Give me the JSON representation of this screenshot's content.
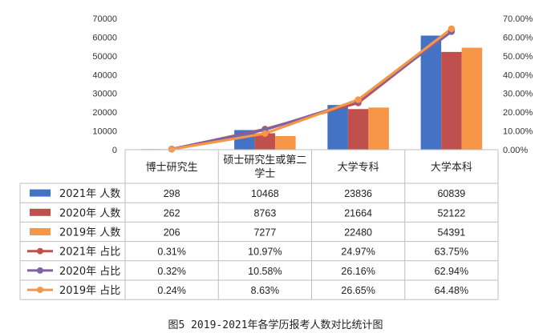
{
  "caption": "图5  2019-2021年各学历报考人数对比统计图",
  "chart_data": {
    "type": "bar",
    "title": "",
    "categories": [
      "博士研究生",
      "硕士研究生或第二学士",
      "大学专科",
      "大学本科"
    ],
    "category_lines": [
      [
        "博士研究生"
      ],
      [
        "硕士研究生或第二",
        "学士"
      ],
      [
        "大学专科"
      ],
      [
        "大学本科"
      ]
    ],
    "y_left": {
      "lim": [
        0,
        70000
      ],
      "ticks": [
        "0",
        "10000",
        "20000",
        "30000",
        "40000",
        "50000",
        "60000",
        "70000"
      ]
    },
    "y_right": {
      "lim": [
        0,
        70
      ],
      "ticks": [
        "0.00%",
        "10.00%",
        "20.00%",
        "30.00%",
        "40.00%",
        "50.00%",
        "60.00%",
        "70.00%"
      ]
    },
    "grid": false,
    "legend": "table-below",
    "series": [
      {
        "name": "2021年 人数",
        "kind": "bar",
        "axis": "left",
        "color": "#4472c4",
        "values": [
          298,
          10468,
          23836,
          60839
        ],
        "labels": [
          "298",
          "10468",
          "23836",
          "60839"
        ]
      },
      {
        "name": "2020年 人数",
        "kind": "bar",
        "axis": "left",
        "color": "#c0504d",
        "values": [
          262,
          8763,
          21664,
          52122
        ],
        "labels": [
          "262",
          "8763",
          "21664",
          "52122"
        ]
      },
      {
        "name": "2019年 人数",
        "kind": "bar",
        "axis": "left",
        "color": "#f79646",
        "values": [
          206,
          7277,
          22480,
          54391
        ],
        "labels": [
          "206",
          "7277",
          "22480",
          "54391"
        ]
      },
      {
        "name": "2021年 占比",
        "kind": "line",
        "axis": "right",
        "color": "#c0504d",
        "values": [
          0.31,
          10.97,
          24.97,
          63.75
        ],
        "labels": [
          "0.31%",
          "10.97%",
          "24.97%",
          "63.75%"
        ]
      },
      {
        "name": "2020年 占比",
        "kind": "line",
        "axis": "right",
        "color": "#8064a2",
        "values": [
          0.32,
          10.58,
          26.16,
          62.94
        ],
        "labels": [
          "0.32%",
          "10.58%",
          "26.16%",
          "62.94%"
        ]
      },
      {
        "name": "2019年 占比",
        "kind": "line",
        "axis": "right",
        "color": "#f79646",
        "values": [
          0.24,
          8.63,
          26.65,
          64.48
        ],
        "labels": [
          "0.24%",
          "8.63%",
          "26.65%",
          "64.48%"
        ]
      }
    ]
  }
}
